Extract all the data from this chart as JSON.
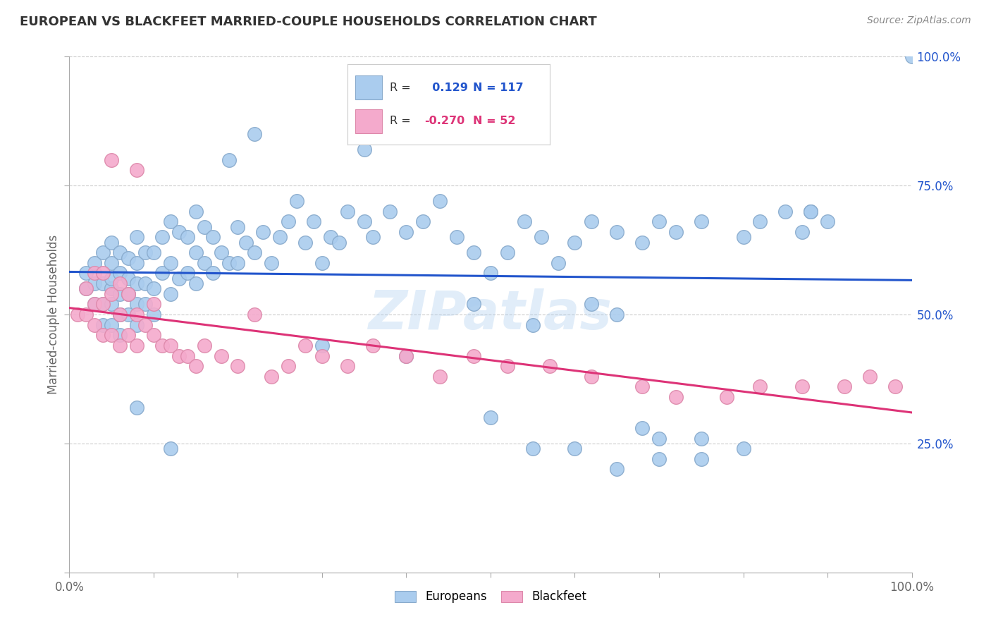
{
  "title": "EUROPEAN VS BLACKFEET MARRIED-COUPLE HOUSEHOLDS CORRELATION CHART",
  "source": "Source: ZipAtlas.com",
  "ylabel": "Married-couple Households",
  "watermark": "ZIPatlas",
  "xlim": [
    0,
    1
  ],
  "ylim": [
    0,
    1
  ],
  "legend_entries": [
    {
      "label": "Europeans",
      "color": "#aaccee",
      "edge": "#88aacc",
      "R": 0.129,
      "N": 117
    },
    {
      "label": "Blackfeet",
      "color": "#f4aacc",
      "edge": "#dd88aa",
      "R": -0.27,
      "N": 52
    }
  ],
  "blue_line_color": "#2255cc",
  "pink_line_color": "#dd3377",
  "background_color": "#ffffff",
  "grid_color": "#cccccc",
  "title_color": "#333333",
  "blue_R_color": "#2255cc",
  "pink_R_color": "#dd3377",
  "blue_points_x": [
    0.02,
    0.02,
    0.03,
    0.03,
    0.03,
    0.04,
    0.04,
    0.04,
    0.04,
    0.05,
    0.05,
    0.05,
    0.05,
    0.05,
    0.05,
    0.06,
    0.06,
    0.06,
    0.06,
    0.06,
    0.07,
    0.07,
    0.07,
    0.07,
    0.08,
    0.08,
    0.08,
    0.08,
    0.08,
    0.09,
    0.09,
    0.09,
    0.1,
    0.1,
    0.1,
    0.11,
    0.11,
    0.12,
    0.12,
    0.12,
    0.13,
    0.13,
    0.14,
    0.14,
    0.15,
    0.15,
    0.15,
    0.16,
    0.16,
    0.17,
    0.17,
    0.18,
    0.19,
    0.2,
    0.2,
    0.21,
    0.22,
    0.23,
    0.24,
    0.25,
    0.26,
    0.27,
    0.28,
    0.29,
    0.3,
    0.31,
    0.32,
    0.33,
    0.35,
    0.36,
    0.38,
    0.4,
    0.42,
    0.44,
    0.46,
    0.48,
    0.5,
    0.52,
    0.54,
    0.56,
    0.58,
    0.6,
    0.62,
    0.65,
    0.68,
    0.7,
    0.72,
    0.75,
    0.8,
    0.82,
    0.85,
    0.87,
    0.9,
    0.19,
    0.22,
    0.35,
    0.48,
    0.55,
    0.62,
    0.3,
    0.4,
    0.65,
    0.7,
    0.75,
    0.08,
    0.12,
    0.55,
    0.68,
    0.88,
    1.0,
    0.5,
    0.6,
    0.65,
    0.7,
    0.75,
    0.8,
    0.88
  ],
  "blue_points_y": [
    0.55,
    0.58,
    0.52,
    0.56,
    0.6,
    0.48,
    0.52,
    0.56,
    0.62,
    0.48,
    0.52,
    0.55,
    0.57,
    0.6,
    0.64,
    0.46,
    0.5,
    0.54,
    0.58,
    0.62,
    0.5,
    0.54,
    0.57,
    0.61,
    0.48,
    0.52,
    0.56,
    0.6,
    0.65,
    0.52,
    0.56,
    0.62,
    0.5,
    0.55,
    0.62,
    0.58,
    0.65,
    0.54,
    0.6,
    0.68,
    0.57,
    0.66,
    0.58,
    0.65,
    0.56,
    0.62,
    0.7,
    0.6,
    0.67,
    0.58,
    0.65,
    0.62,
    0.6,
    0.6,
    0.67,
    0.64,
    0.62,
    0.66,
    0.6,
    0.65,
    0.68,
    0.72,
    0.64,
    0.68,
    0.6,
    0.65,
    0.64,
    0.7,
    0.68,
    0.65,
    0.7,
    0.66,
    0.68,
    0.72,
    0.65,
    0.62,
    0.58,
    0.62,
    0.68,
    0.65,
    0.6,
    0.64,
    0.68,
    0.66,
    0.64,
    0.68,
    0.66,
    0.68,
    0.65,
    0.68,
    0.7,
    0.66,
    0.68,
    0.8,
    0.85,
    0.82,
    0.52,
    0.48,
    0.52,
    0.44,
    0.42,
    0.5,
    0.26,
    0.26,
    0.32,
    0.24,
    0.24,
    0.28,
    0.7,
    1.0,
    0.3,
    0.24,
    0.2,
    0.22,
    0.22,
    0.24,
    0.7
  ],
  "pink_points_x": [
    0.01,
    0.02,
    0.02,
    0.03,
    0.03,
    0.03,
    0.04,
    0.04,
    0.04,
    0.05,
    0.05,
    0.06,
    0.06,
    0.06,
    0.07,
    0.07,
    0.08,
    0.08,
    0.09,
    0.1,
    0.1,
    0.11,
    0.12,
    0.13,
    0.14,
    0.15,
    0.16,
    0.18,
    0.2,
    0.22,
    0.24,
    0.26,
    0.28,
    0.3,
    0.33,
    0.36,
    0.4,
    0.44,
    0.48,
    0.52,
    0.57,
    0.62,
    0.68,
    0.72,
    0.78,
    0.82,
    0.87,
    0.92,
    0.95,
    0.98,
    0.05,
    0.08
  ],
  "pink_points_y": [
    0.5,
    0.5,
    0.55,
    0.48,
    0.52,
    0.58,
    0.46,
    0.52,
    0.58,
    0.46,
    0.54,
    0.44,
    0.5,
    0.56,
    0.46,
    0.54,
    0.44,
    0.5,
    0.48,
    0.46,
    0.52,
    0.44,
    0.44,
    0.42,
    0.42,
    0.4,
    0.44,
    0.42,
    0.4,
    0.5,
    0.38,
    0.4,
    0.44,
    0.42,
    0.4,
    0.44,
    0.42,
    0.38,
    0.42,
    0.4,
    0.4,
    0.38,
    0.36,
    0.34,
    0.34,
    0.36,
    0.36,
    0.36,
    0.38,
    0.36,
    0.8,
    0.78
  ]
}
